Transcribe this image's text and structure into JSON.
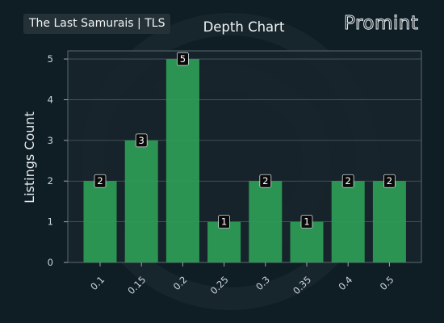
{
  "header": {
    "collection_label": "The Last Samurais | TLS",
    "brand": "Promint"
  },
  "colors": {
    "background": "#0f1e25",
    "plot_background": "#18252b",
    "bar": "#2f9e57",
    "grid": "#4d5c63",
    "axis_text": "#cfd6da",
    "label_box": "#0a0a0a"
  },
  "chart_data": {
    "type": "bar",
    "title": "Depth Chart",
    "xlabel": "",
    "ylabel": "Listings Count",
    "categories": [
      "0.1",
      "0.15",
      "0.2",
      "0.25",
      "0.3",
      "0.35",
      "0.4",
      "0.5"
    ],
    "values": [
      2,
      3,
      5,
      1,
      2,
      1,
      2,
      2
    ],
    "data_labels": [
      "2",
      "3",
      "5",
      "1",
      "2",
      "1",
      "2",
      "2"
    ],
    "yticks": [
      "0",
      "1",
      "2",
      "3",
      "4",
      "5"
    ],
    "ylim": [
      0,
      5.2
    ],
    "grid": "horizontal",
    "tick_label_rotation": "45deg"
  }
}
